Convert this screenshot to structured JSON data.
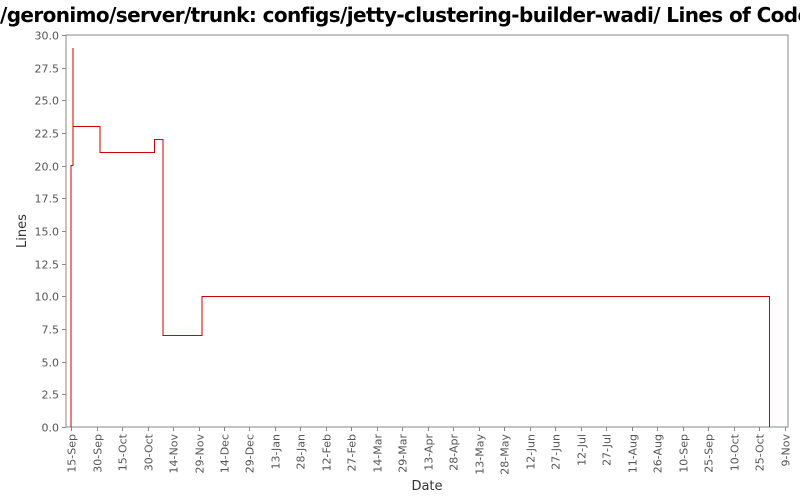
{
  "chart_data": {
    "type": "line",
    "title": "/geronimo/server/trunk: configs/jetty-clustering-builder-wadi/ Lines of Code",
    "xlabel": "Date",
    "ylabel": "Lines",
    "ylim": [
      0,
      30
    ],
    "y_ticks": [
      "0.0",
      "2.5",
      "5.0",
      "7.5",
      "10.0",
      "12.5",
      "15.0",
      "17.5",
      "20.0",
      "22.5",
      "25.0",
      "27.5",
      "30.0"
    ],
    "x_ticks": [
      "15-Sep",
      "30-Sep",
      "15-Oct",
      "30-Oct",
      "14-Nov",
      "29-Nov",
      "14-Dec",
      "29-Dec",
      "13-Jan",
      "28-Jan",
      "12-Feb",
      "27-Feb",
      "14-Mar",
      "29-Mar",
      "13-Apr",
      "28-Apr",
      "13-May",
      "28-May",
      "12-Jun",
      "27-Jun",
      "12-Jul",
      "27-Jul",
      "11-Aug",
      "26-Aug",
      "10-Sep",
      "25-Sep",
      "10-Oct",
      "25-Oct",
      "9-Nov"
    ],
    "x_range": [
      "2005-09-12",
      "2006-11-11"
    ],
    "grid": false,
    "line_color": "#cc0000",
    "step": true,
    "series": [
      {
        "x": [
          "2005-09-15",
          "2005-09-15",
          "2005-09-16",
          "2005-09-16",
          "2005-10-02",
          "2005-11-03",
          "2005-11-08",
          "2005-12-01",
          "2006-10-31",
          "2006-10-31"
        ],
        "values": [
          0,
          20,
          29,
          23,
          21,
          22,
          7,
          10,
          10,
          0
        ]
      }
    ]
  }
}
